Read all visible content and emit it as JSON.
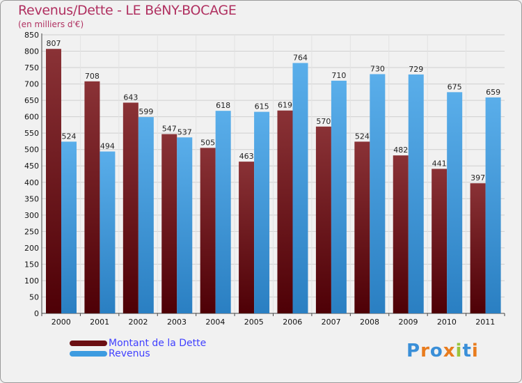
{
  "header": {
    "title": "Revenus/Dette - LE BéNY-BOCAGE",
    "subtitle": "(en milliers d'€)"
  },
  "colors": {
    "dette": "#6b0f12",
    "revenus": "#3d9be0",
    "title": "#b03060",
    "legend_text": "#4040ff"
  },
  "legend": {
    "dette_label": "Montant de la Dette",
    "revenus_label": "Revenus"
  },
  "logo": {
    "text": "Proxiti",
    "letters": [
      {
        "char": "P",
        "color": "#3a8fd8"
      },
      {
        "char": "r",
        "color": "#e87c1e"
      },
      {
        "char": "o",
        "color": "#3a8fd8"
      },
      {
        "char": "x",
        "color": "#e87c1e"
      },
      {
        "char": "i",
        "color": "#9ac43c"
      },
      {
        "char": "t",
        "color": "#3a8fd8"
      },
      {
        "char": "i",
        "color": "#e87c1e"
      }
    ]
  },
  "chart_data": {
    "type": "bar",
    "title": "Revenus/Dette - LE BéNY-BOCAGE",
    "subtitle": "(en milliers d'€)",
    "xlabel": "",
    "ylabel": "",
    "categories": [
      "2000",
      "2001",
      "2002",
      "2003",
      "2004",
      "2005",
      "2006",
      "2007",
      "2008",
      "2009",
      "2010",
      "2011"
    ],
    "series": [
      {
        "name": "Montant de la Dette",
        "values": [
          807,
          708,
          643,
          547,
          505,
          463,
          619,
          570,
          524,
          482,
          441,
          397
        ]
      },
      {
        "name": "Revenus",
        "values": [
          524,
          494,
          599,
          537,
          618,
          615,
          764,
          710,
          730,
          729,
          675,
          659
        ]
      }
    ],
    "ylim": [
      0,
      850
    ],
    "yticks": [
      0,
      50,
      100,
      150,
      200,
      250,
      300,
      350,
      400,
      450,
      500,
      550,
      600,
      650,
      700,
      750,
      800,
      850
    ],
    "grid": true,
    "legend_position": "bottom-left"
  }
}
